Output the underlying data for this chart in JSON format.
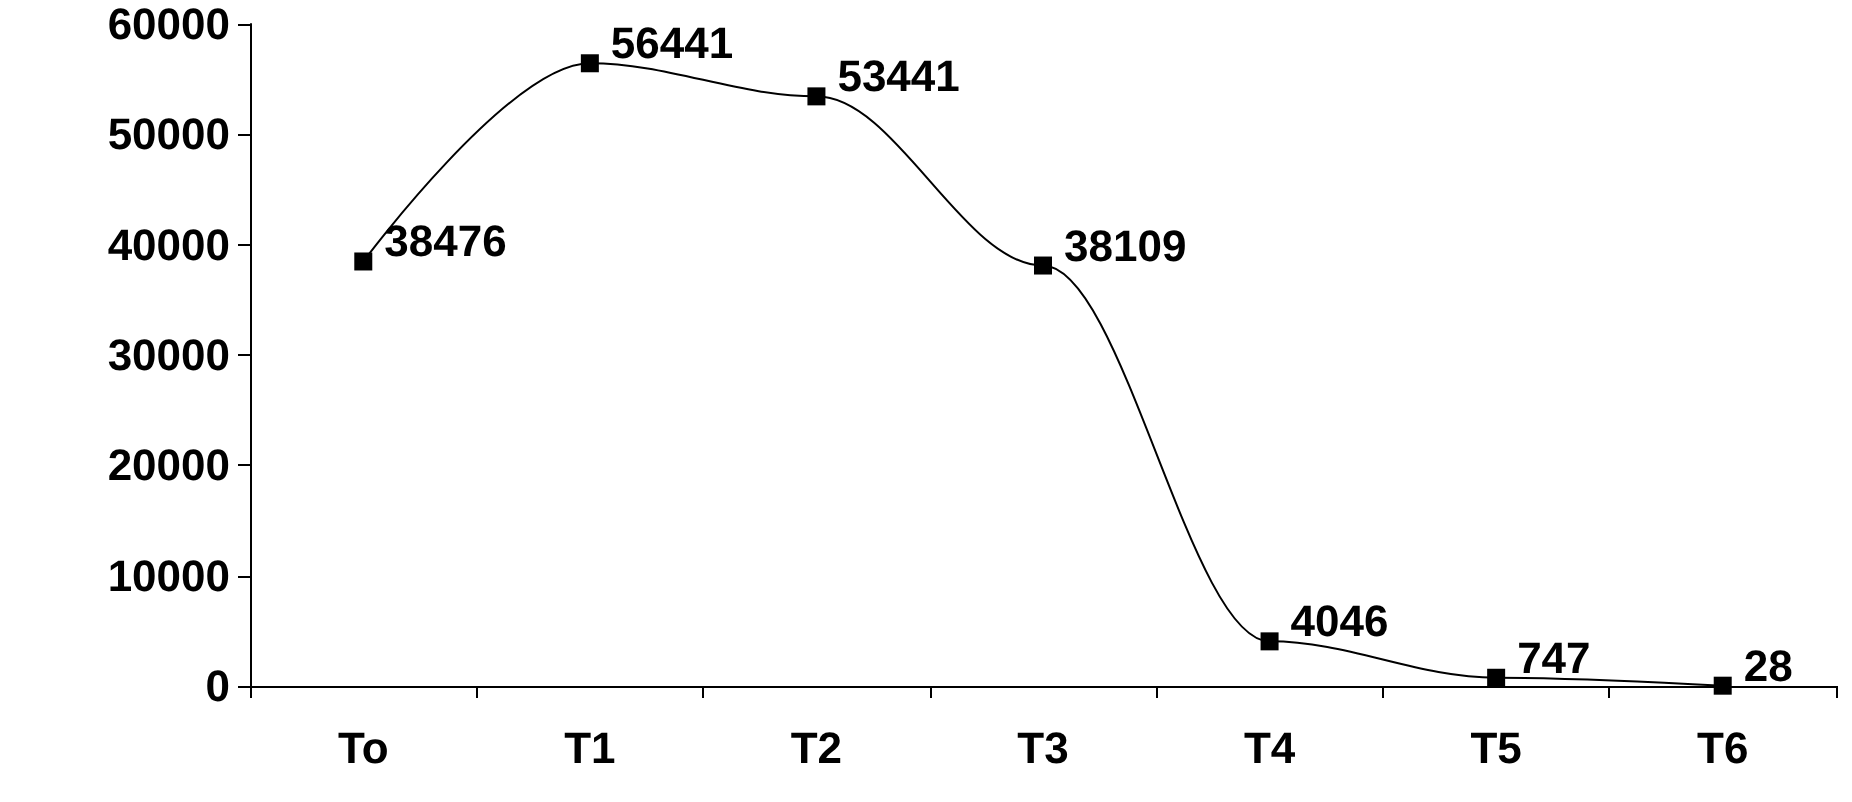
{
  "chart_data": {
    "type": "line",
    "categories": [
      "To",
      "T1",
      "T2",
      "T3",
      "T4",
      "T5",
      "T6"
    ],
    "series": [
      {
        "color": "#000000",
        "values": [
          38476,
          56441,
          53441,
          38109,
          4046,
          747,
          28
        ]
      }
    ],
    "ylim": [
      0,
      60000
    ],
    "yticks": [
      0,
      10000,
      20000,
      30000,
      40000,
      50000,
      60000
    ],
    "marker": "square",
    "data_labels": true,
    "grid": false
  }
}
